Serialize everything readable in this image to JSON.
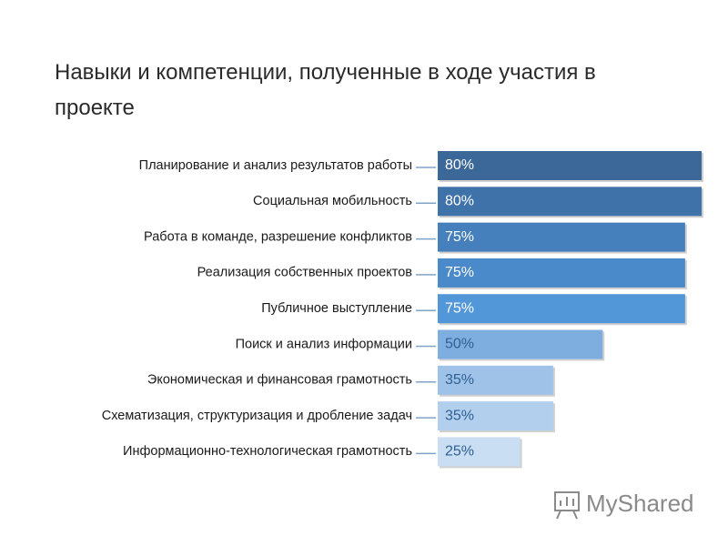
{
  "chart_data": {
    "type": "hbar",
    "title": "Навыки и компетенции, полученные в ходе участия в проекте",
    "categories": [
      "Планирование и анализ результатов работы",
      "Социальная мобильность",
      "Работа в команде, разрешение конфликтов",
      "Реализация собственных проектов",
      "Публичное выступление",
      "Поиск и анализ информации",
      "Экономическая и финансовая грамотность",
      "Схематизация, структуризация и дробление задач",
      "Информационно-технологическая грамотность"
    ],
    "values": [
      80,
      80,
      75,
      75,
      75,
      50,
      35,
      35,
      25
    ],
    "value_labels": [
      "80%",
      "80%",
      "75%",
      "75%",
      "75%",
      "50%",
      "35%",
      "35%",
      "25%"
    ],
    "colors": [
      "#3b6898",
      "#3f72a8",
      "#457fbc",
      "#4a8aca",
      "#5297d8",
      "#7eaee0",
      "#9fc2e9",
      "#b2cfee",
      "#c9ddf3"
    ],
    "watermark": "MyShared"
  }
}
